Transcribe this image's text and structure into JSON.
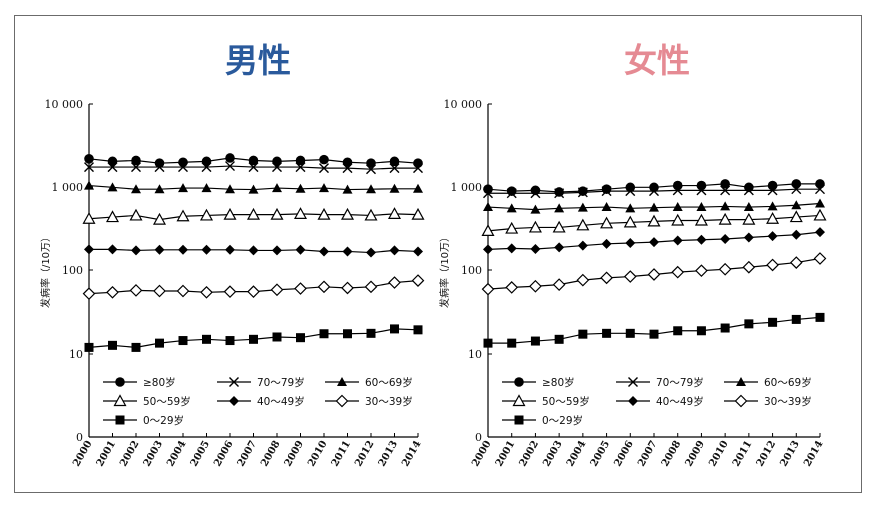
{
  "chart_data": [
    {
      "type": "line",
      "title": "男性",
      "title_color": "#2a5a9c",
      "ylabel": "发病率（/10万）",
      "yscale": "log",
      "ylim": [
        0,
        10000
      ],
      "yticks": [
        "0",
        "10",
        "100",
        "1 000",
        "10 000"
      ],
      "x": [
        "2000",
        "2001",
        "2002",
        "2003",
        "2004",
        "2005",
        "2006",
        "2007",
        "2008",
        "2009",
        "2010",
        "2011",
        "2012",
        "2013",
        "2014"
      ],
      "series": [
        {
          "name": "≥80岁",
          "marker": "circle",
          "values": [
            2200,
            2050,
            2100,
            1950,
            2000,
            2050,
            2250,
            2100,
            2050,
            2100,
            2150,
            2000,
            1950,
            2050,
            1950
          ]
        },
        {
          "name": "70～79岁",
          "marker": "x",
          "values": [
            1750,
            1750,
            1750,
            1750,
            1750,
            1750,
            1800,
            1750,
            1750,
            1750,
            1700,
            1700,
            1650,
            1700,
            1700
          ]
        },
        {
          "name": "60～69岁",
          "marker": "triangle-filled",
          "values": [
            1050,
            1000,
            950,
            950,
            980,
            980,
            950,
            940,
            980,
            960,
            980,
            940,
            950,
            960,
            960
          ]
        },
        {
          "name": "50～59岁",
          "marker": "triangle-open",
          "values": [
            420,
            440,
            460,
            410,
            450,
            460,
            470,
            470,
            470,
            480,
            470,
            470,
            460,
            480,
            470
          ]
        },
        {
          "name": "40～49岁",
          "marker": "diamond-filled",
          "values": [
            180,
            180,
            175,
            178,
            178,
            178,
            178,
            175,
            175,
            178,
            170,
            170,
            165,
            175,
            170
          ]
        },
        {
          "name": "30～39岁",
          "marker": "diamond-open",
          "values": [
            53,
            55,
            58,
            57,
            57,
            55,
            56,
            56,
            59,
            61,
            64,
            62,
            64,
            72,
            76
          ]
        },
        {
          "name": "0～29岁",
          "marker": "square",
          "values": [
            12,
            12.7,
            12,
            13.5,
            14.5,
            15,
            14.5,
            15,
            16,
            15.7,
            17.5,
            17.5,
            17.7,
            20,
            19.5
          ]
        }
      ],
      "legend": "bottom"
    },
    {
      "type": "line",
      "title": "女性",
      "title_color": "#e58a93",
      "ylabel": "发病率（/10万）",
      "yscale": "log",
      "ylim": [
        0,
        10000
      ],
      "yticks": [
        "0",
        "10",
        "100",
        "1 000",
        "10 000"
      ],
      "x": [
        "2000",
        "2001",
        "2002",
        "2003",
        "2004",
        "2005",
        "2006",
        "2007",
        "2008",
        "2009",
        "2010",
        "2011",
        "2012",
        "2013",
        "2014"
      ],
      "series": [
        {
          "name": "≥80岁",
          "marker": "circle",
          "values": [
            950,
            900,
            920,
            880,
            900,
            950,
            1000,
            1000,
            1050,
            1050,
            1100,
            1000,
            1050,
            1100,
            1100
          ]
        },
        {
          "name": "70～79岁",
          "marker": "x",
          "values": [
            850,
            850,
            850,
            850,
            870,
            900,
            900,
            900,
            920,
            920,
            920,
            920,
            920,
            950,
            950
          ]
        },
        {
          "name": "60～69岁",
          "marker": "triangle-filled",
          "values": [
            580,
            560,
            540,
            560,
            570,
            580,
            560,
            570,
            580,
            580,
            590,
            580,
            590,
            610,
            640
          ]
        },
        {
          "name": "50～59岁",
          "marker": "triangle-open",
          "values": [
            300,
            320,
            330,
            330,
            350,
            370,
            380,
            390,
            400,
            400,
            410,
            410,
            420,
            440,
            460
          ]
        },
        {
          "name": "40～49岁",
          "marker": "diamond-filled",
          "values": [
            180,
            185,
            182,
            190,
            200,
            210,
            215,
            220,
            230,
            235,
            240,
            250,
            260,
            270,
            290
          ]
        },
        {
          "name": "30～39岁",
          "marker": "diamond-open",
          "values": [
            60,
            63,
            65,
            68,
            77,
            82,
            85,
            90,
            96,
            100,
            104,
            110,
            117,
            125,
            140
          ]
        },
        {
          "name": "0～29岁",
          "marker": "square",
          "values": [
            13.5,
            13.5,
            14.3,
            15,
            17.3,
            17.7,
            17.7,
            17.3,
            19,
            19,
            20.5,
            23,
            24,
            26,
            27.5
          ]
        }
      ],
      "legend": "bottom"
    }
  ]
}
